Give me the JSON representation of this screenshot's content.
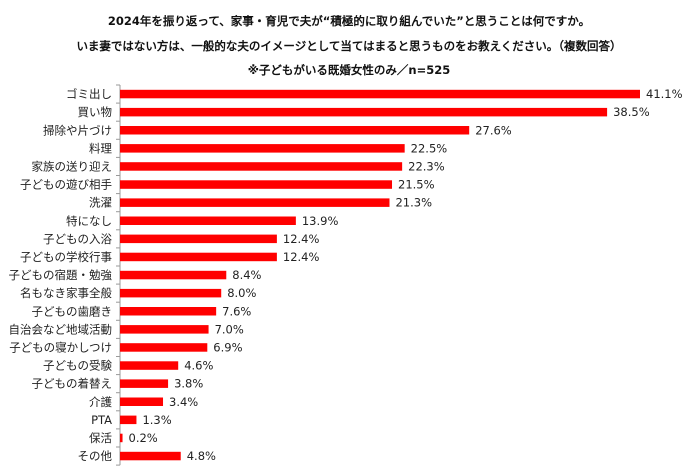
{
  "chart_data": {
    "type": "bar",
    "orientation": "horizontal",
    "title_lines": [
      "2024年を振り返って、家事・育児で夫が“積極的に取り組んでいた”と思うことは何ですか。",
      "いま妻ではない方は、一般的な夫のイメージとして当てはまると思うものをお教えください。（複数回答）",
      "※子どもがいる既婚女性のみ／n=525"
    ],
    "categories": [
      "ゴミ出し",
      "買い物",
      "掃除や片づけ",
      "料理",
      "家族の送り迎え",
      "子どもの遊び相手",
      "洗濯",
      "特になし",
      "子どもの入浴",
      "子どもの学校行事",
      "子どもの宿題・勉強",
      "名もなき家事全般",
      "子どもの歯磨き",
      "自治会など地域活動",
      "子どもの寝かしつけ",
      "子どもの受験",
      "子どもの着替え",
      "介護",
      "PTA",
      "保活",
      "その他"
    ],
    "values": [
      41.1,
      38.5,
      27.6,
      22.5,
      22.3,
      21.5,
      21.3,
      13.9,
      12.4,
      12.4,
      8.4,
      8.0,
      7.6,
      7.0,
      6.9,
      4.6,
      3.8,
      3.4,
      1.3,
      0.2,
      4.8
    ],
    "value_labels": [
      "41.1%",
      "38.5%",
      "27.6%",
      "22.5%",
      "22.3%",
      "21.5%",
      "21.3%",
      "13.9%",
      "12.4%",
      "12.4%",
      "8.4%",
      "8.0%",
      "7.6%",
      "7.0%",
      "6.9%",
      "4.6%",
      "3.8%",
      "3.4%",
      "1.3%",
      "0.2%",
      "4.8%"
    ],
    "unit": "%",
    "xlim": [
      0,
      43
    ],
    "grid": false,
    "bar_color": "#ff0000"
  }
}
